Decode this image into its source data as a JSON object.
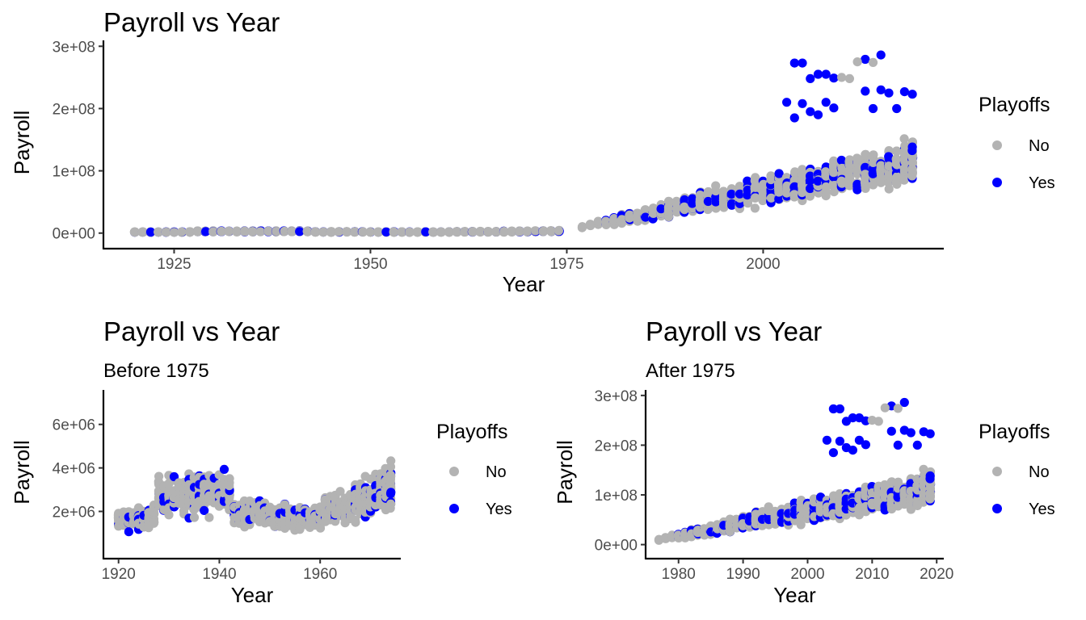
{
  "chart_data": [
    {
      "type": "scatter",
      "title": "Payroll vs Year",
      "subtitle": "",
      "xlabel": "Year",
      "ylabel": "Payroll",
      "xlim": [
        1916,
        2023
      ],
      "ylim": [
        -12000000,
        303000000
      ],
      "x_ticks": [
        1925,
        1950,
        1975,
        2000
      ],
      "x_tick_labels": [
        "1925",
        "1950",
        "1975",
        "2000"
      ],
      "y_ticks": [
        0,
        100000000,
        200000000,
        300000000
      ],
      "y_tick_labels": [
        "0e+00",
        "1e+08",
        "2e+08",
        "3e+08"
      ],
      "grid": false,
      "legend_position": "right",
      "legend_title": "Playoffs",
      "series": [
        {
          "name": "No",
          "color": "#b3b3b3",
          "points": "mixed: ~1600 team-seasons 1920–2019, payroll ~1e6–7e6 before 1975, rising to ~5e7–2.5e8 after 1990"
        },
        {
          "name": "Yes",
          "color": "#0000ff",
          "points": "mixed: playoff team-seasons, same range, generally higher payroll in later years"
        }
      ]
    },
    {
      "type": "scatter",
      "title": "Payroll vs Year",
      "subtitle": "Before 1975",
      "xlabel": "Year",
      "ylabel": "Payroll",
      "xlim": [
        1917,
        1976
      ],
      "ylim": [
        200000,
        7400000
      ],
      "x_ticks": [
        1920,
        1940,
        1960
      ],
      "x_tick_labels": [
        "1920",
        "1940",
        "1960"
      ],
      "y_ticks": [
        2000000,
        4000000,
        6000000
      ],
      "y_tick_labels": [
        "2e+06",
        "4e+06",
        "6e+06"
      ],
      "grid": false,
      "legend_position": "right",
      "legend_title": "Playoffs",
      "series": [
        {
          "name": "No",
          "color": "#b3b3b3"
        },
        {
          "name": "Yes",
          "color": "#0000ff"
        }
      ]
    },
    {
      "type": "scatter",
      "title": "Payroll vs Year",
      "subtitle": "After 1975",
      "xlabel": "Year",
      "ylabel": "Payroll",
      "xlim": [
        1974.9,
        2021.1
      ],
      "ylim": [
        -12000000,
        303000000
      ],
      "x_ticks": [
        1980,
        1990,
        2000,
        2010,
        2020
      ],
      "x_tick_labels": [
        "1980",
        "1990",
        "2000",
        "2010",
        "2020"
      ],
      "y_ticks": [
        0,
        100000000,
        200000000,
        300000000
      ],
      "y_tick_labels": [
        "0e+00",
        "1e+08",
        "2e+08",
        "3e+08"
      ],
      "grid": false,
      "legend_position": "right",
      "legend_title": "Playoffs",
      "series": [
        {
          "name": "No",
          "color": "#b3b3b3"
        },
        {
          "name": "Yes",
          "color": "#0000ff"
        }
      ]
    }
  ]
}
